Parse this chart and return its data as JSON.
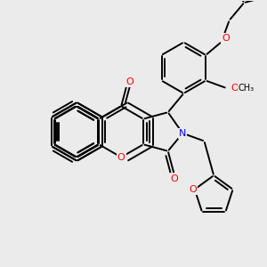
{
  "bg": "#ebebeb",
  "lc": "#000000",
  "oc": "#ff0000",
  "nc": "#0000ff",
  "figsize": [
    3.0,
    3.0
  ],
  "dpi": 100,
  "xlim": [
    0,
    300
  ],
  "ylim": [
    0,
    300
  ]
}
